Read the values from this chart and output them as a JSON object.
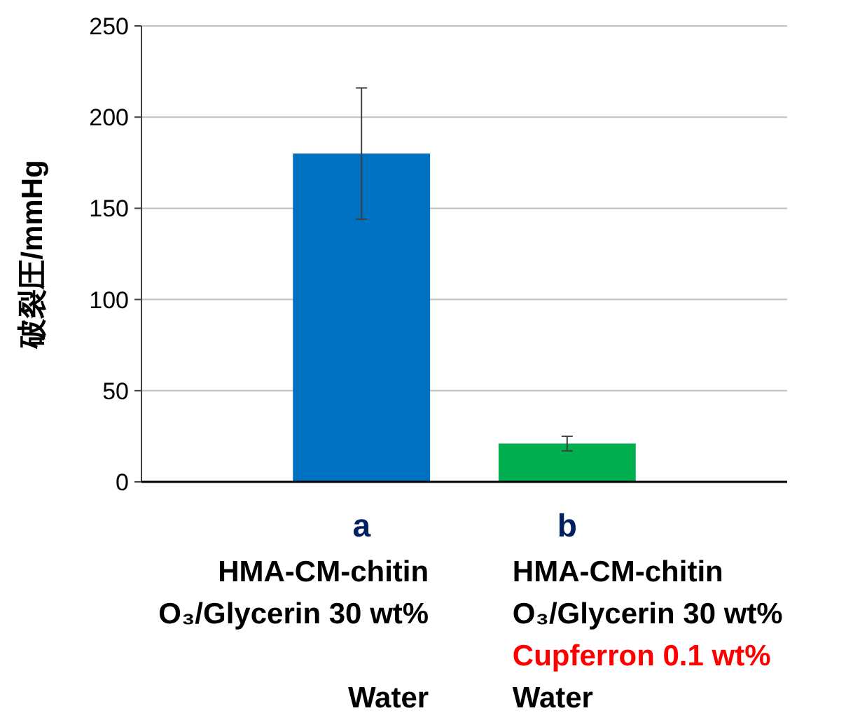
{
  "chart_data": {
    "type": "bar",
    "ylabel": "破裂圧/mmHg",
    "categories": [
      "a",
      "b"
    ],
    "values": [
      180,
      21
    ],
    "errors": [
      36,
      4
    ],
    "colors": [
      "#0070c0",
      "#00b050"
    ],
    "ylim": [
      0,
      250
    ],
    "yticks": [
      0,
      50,
      100,
      150,
      200,
      250
    ],
    "grid": "y",
    "annotations": [
      "HMA-CM-chitin",
      "O₃/Glycerin 30 wt%",
      "Water",
      "HMA-CM-chitin",
      "O₃/Glycerin 30 wt%",
      "Cupferron 0.1 wt%",
      "Water"
    ]
  }
}
